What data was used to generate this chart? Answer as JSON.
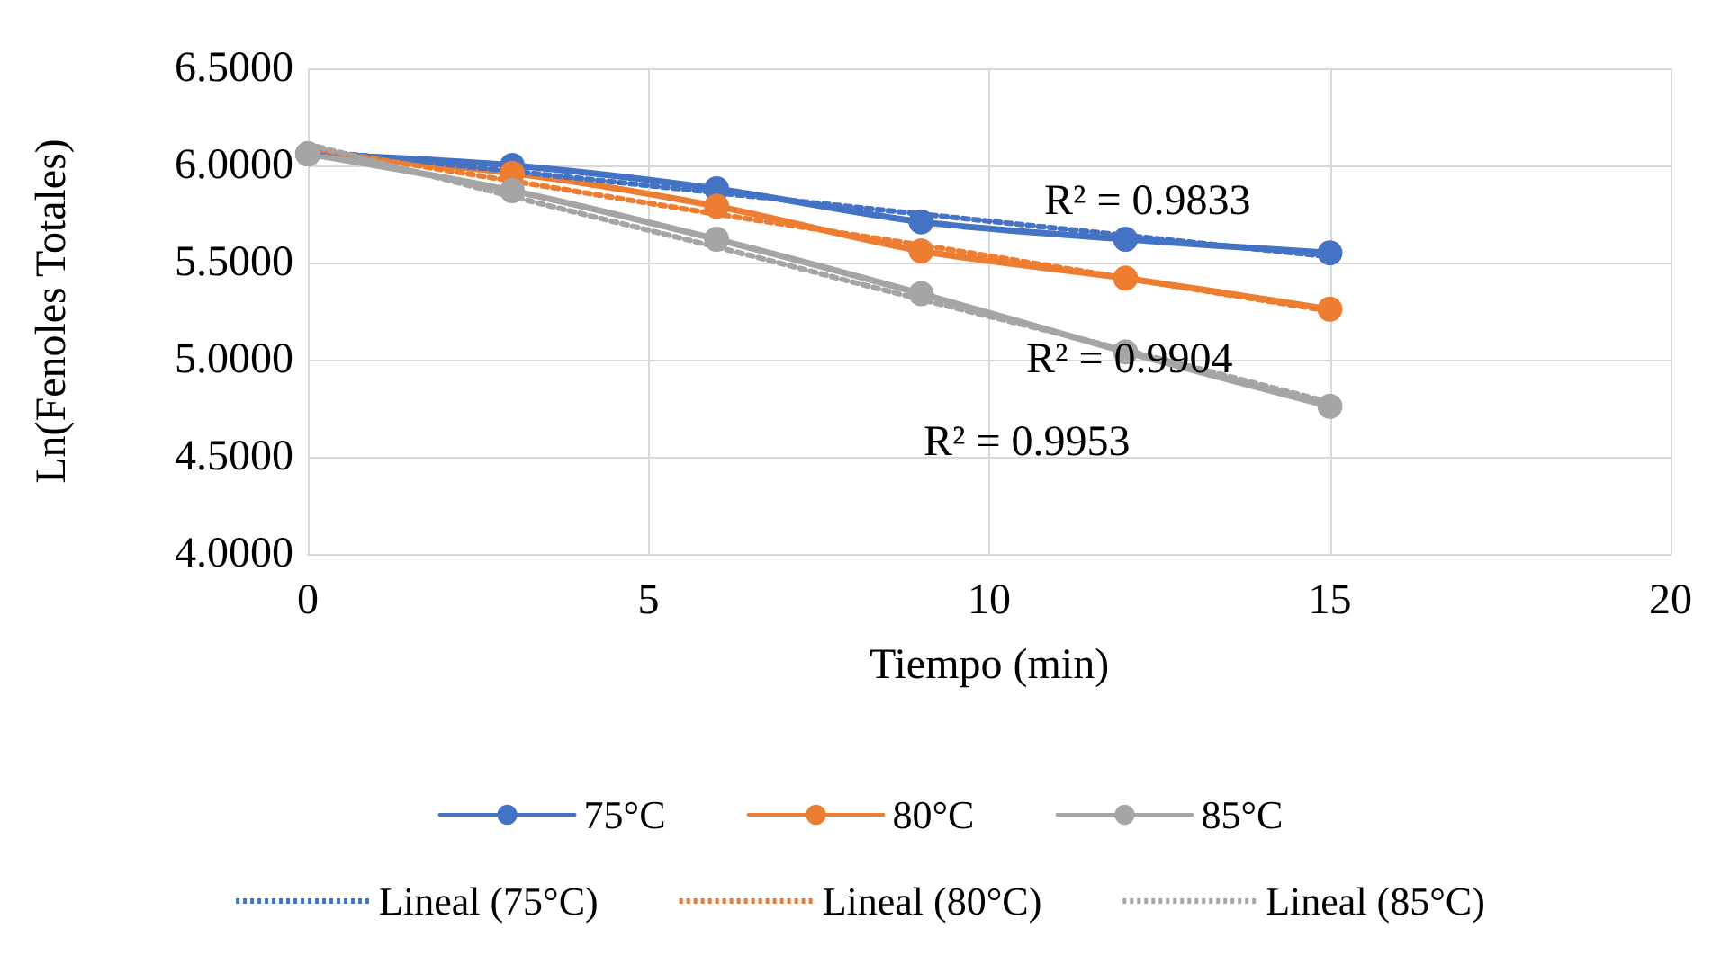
{
  "chart_data": {
    "type": "line",
    "xlabel": "Tiempo (min)",
    "ylabel": "Ln(Fenoles Totales)",
    "x": [
      0,
      3,
      6,
      9,
      12,
      15
    ],
    "series": [
      {
        "name": "75°C",
        "color": "#4472c4",
        "marker": "circle",
        "values": [
          6.06,
          6.0,
          5.88,
          5.71,
          5.62,
          5.55
        ]
      },
      {
        "name": "80°C",
        "color": "#ed7d31",
        "marker": "circle",
        "values": [
          6.06,
          5.96,
          5.79,
          5.56,
          5.42,
          5.26
        ]
      },
      {
        "name": "85°C",
        "color": "#a5a5a5",
        "marker": "circle",
        "values": [
          6.06,
          5.87,
          5.62,
          5.34,
          5.04,
          4.76
        ]
      },
      {
        "name": "Lineal (75°C)",
        "color": "#4472c4",
        "marker": "none",
        "line_style": "dotted",
        "values": [
          6.08,
          5.97,
          5.86,
          5.75,
          5.64,
          5.53
        ]
      },
      {
        "name": "Lineal (80°C)",
        "color": "#ed7d31",
        "marker": "none",
        "line_style": "dotted",
        "values": [
          6.09,
          5.92,
          5.75,
          5.59,
          5.42,
          5.25
        ]
      },
      {
        "name": "Lineal (85°C)",
        "color": "#a5a5a5",
        "marker": "none",
        "line_style": "dotted",
        "values": [
          6.11,
          5.84,
          5.58,
          5.31,
          5.05,
          4.78
        ]
      }
    ],
    "xlim": [
      0,
      20
    ],
    "xticks": [
      0,
      5,
      10,
      15,
      20
    ],
    "ylim": [
      4,
      6.5
    ],
    "yticks": [
      {
        "value": 4,
        "label": "4.0000"
      },
      {
        "value": 4.5,
        "label": "4.5000"
      },
      {
        "value": 5,
        "label": "5.0000"
      },
      {
        "value": 5.5,
        "label": "5.5000"
      },
      {
        "value": 6,
        "label": "6.0000"
      },
      {
        "value": 6.5,
        "label": "6.5000"
      }
    ],
    "annotations": [
      "R² = 0.9833",
      "R² = 0.9904",
      "R² = 0.9953"
    ],
    "grid": true,
    "legend": "bottom"
  }
}
